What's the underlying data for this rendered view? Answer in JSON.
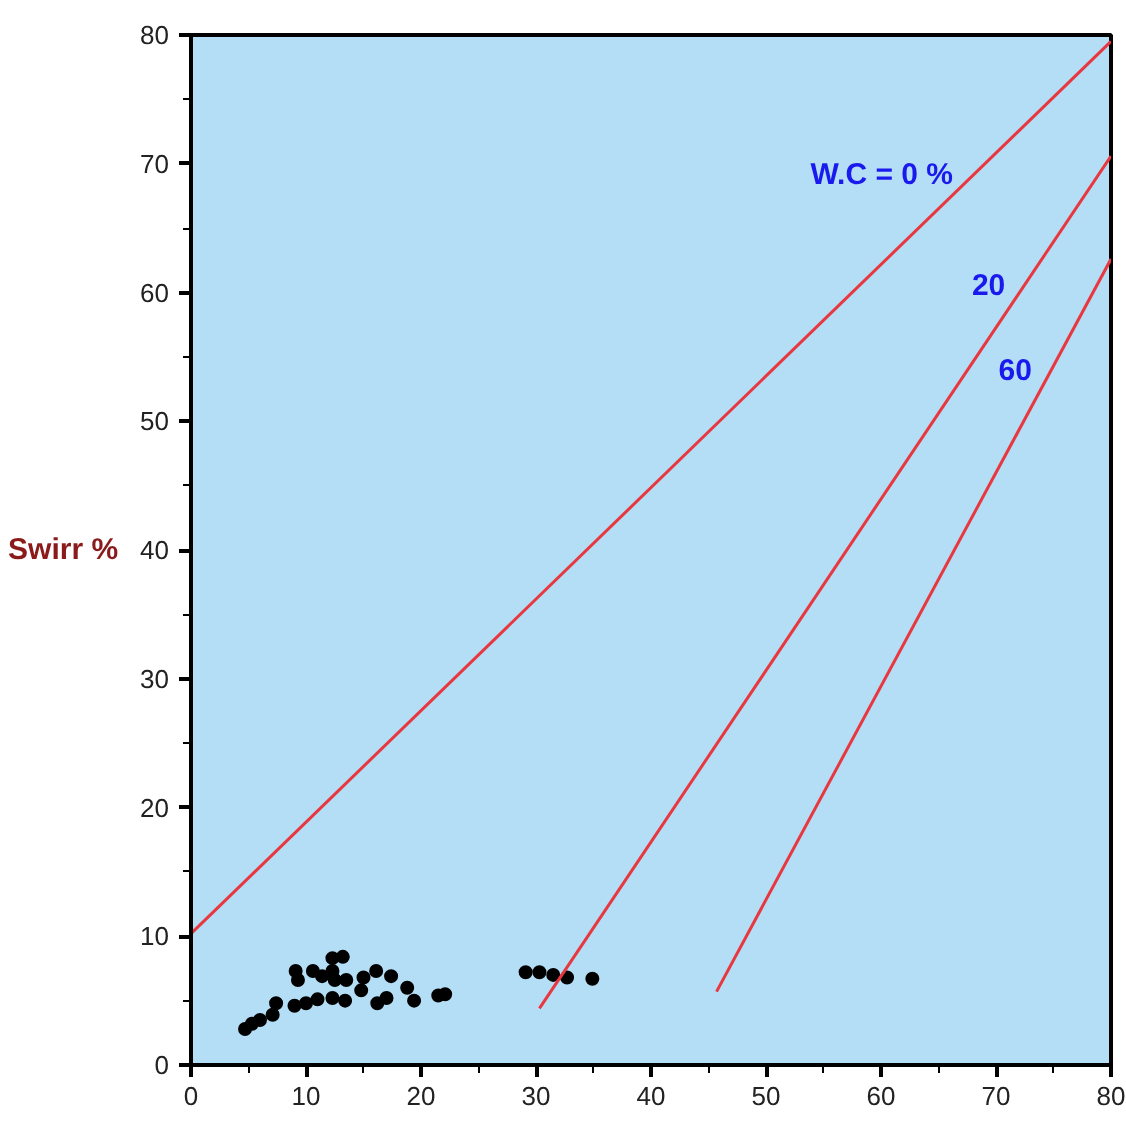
{
  "chart_data": {
    "type": "scatter",
    "ylabel": "Swirr %",
    "xlim": [
      0,
      80
    ],
    "ylim": [
      0,
      80
    ],
    "xticks": [
      0,
      10,
      20,
      30,
      40,
      50,
      60,
      70,
      80
    ],
    "yticks": [
      0,
      10,
      20,
      30,
      40,
      50,
      60,
      70,
      80
    ],
    "grid": false,
    "series": [
      {
        "marker": "circle",
        "color": "#000000",
        "x": [
          4.7,
          5.3,
          6.0,
          7.1,
          7.4,
          9.0,
          10.0,
          11.0,
          12.3,
          13.4,
          14.8,
          16.2,
          17.0,
          9.1,
          9.3,
          10.6,
          11.4,
          12.3,
          12.3,
          13.2,
          12.5,
          13.5,
          15.0,
          16.1,
          17.4,
          18.8,
          19.4,
          21.5,
          22.1,
          29.1,
          30.3,
          31.5,
          32.7,
          34.9
        ],
        "values": [
          2.8,
          3.2,
          3.5,
          3.9,
          4.8,
          4.6,
          4.8,
          5.1,
          5.2,
          5.0,
          5.8,
          4.8,
          5.2,
          7.3,
          6.6,
          7.3,
          6.9,
          7.3,
          8.3,
          8.4,
          6.6,
          6.6,
          6.8,
          7.3,
          6.9,
          6.0,
          5.0,
          5.4,
          5.5,
          7.2,
          7.2,
          7.0,
          6.8,
          6.7
        ]
      },
      {
        "type": "line",
        "name": "W.C = 0 %",
        "color": "#e8373f",
        "x": [
          0,
          80
        ],
        "values": [
          10.2,
          79.5
        ]
      },
      {
        "type": "line",
        "name": "20",
        "color": "#e8373f",
        "x": [
          30.3,
          80
        ],
        "values": [
          4.4,
          70.6
        ]
      },
      {
        "type": "line",
        "name": "60",
        "color": "#e8373f",
        "x": [
          45.7,
          80
        ],
        "values": [
          5.7,
          62.6
        ]
      }
    ]
  }
}
